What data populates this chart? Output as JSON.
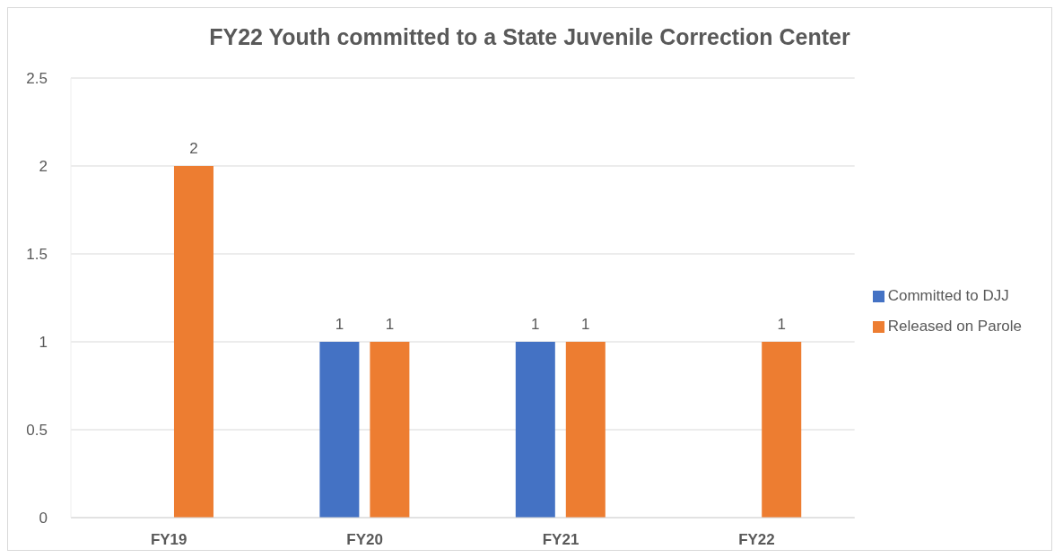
{
  "chart_data": {
    "type": "bar",
    "title": "FY22 Youth committed to a State Juvenile Correction Center",
    "categories": [
      "FY19",
      "FY20",
      "FY21",
      "FY22"
    ],
    "series": [
      {
        "name": "Committed to DJJ",
        "color": "#4472c4",
        "values": [
          null,
          1,
          1,
          null
        ]
      },
      {
        "name": "Released on Parole",
        "color": "#ed7d31",
        "values": [
          2,
          1,
          1,
          1
        ]
      }
    ],
    "ylim": [
      0,
      2.5
    ],
    "yticks": [
      0,
      0.5,
      1,
      1.5,
      2,
      2.5
    ],
    "grid": "y",
    "legend": "right",
    "data_labels": true
  }
}
